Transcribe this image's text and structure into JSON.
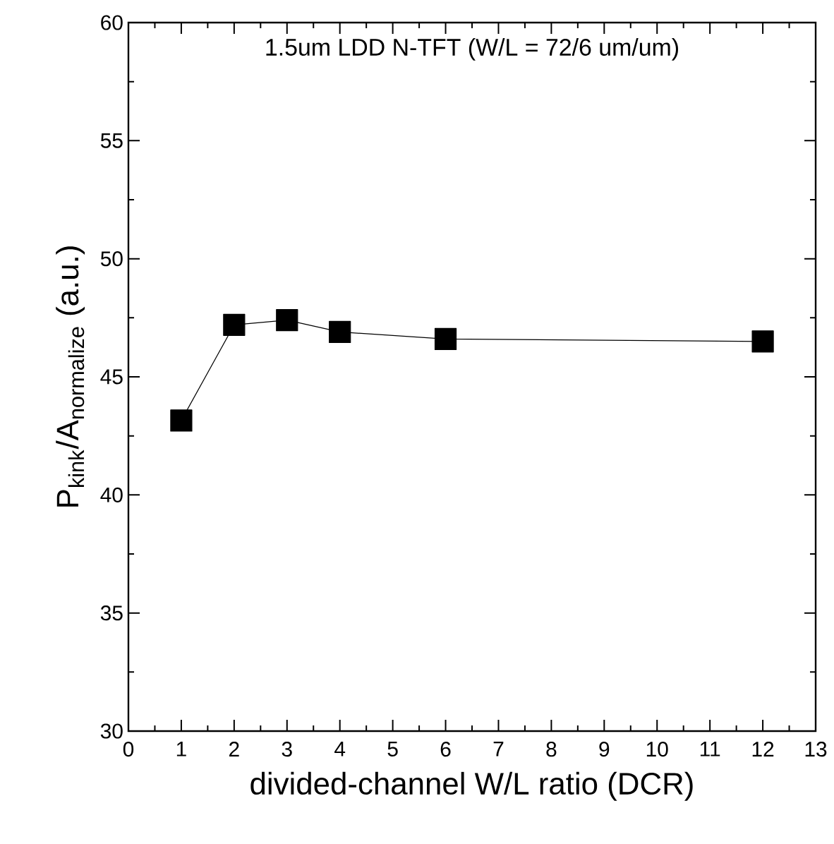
{
  "chart_data": {
    "type": "line",
    "annotations": [
      "1.5um LDD N-TFT (W/L = 72/6 um/um)"
    ],
    "xlabel": "divided-channel W/L ratio (DCR)",
    "ylabel": "\\text{P}_{\\text{kink}}\\text{/A}_{\\text{normalize}}\\text{ (a.u.)}",
    "x": [
      1,
      2,
      3,
      4,
      6,
      12
    ],
    "values": [
      43.15,
      47.2,
      47.4,
      46.9,
      46.6,
      46.5
    ],
    "color": "#000000",
    "marker": "square",
    "line_style": "solid",
    "xlim": [
      0,
      13
    ],
    "xticks": [
      0,
      1,
      2,
      3,
      4,
      5,
      6,
      7,
      8,
      9,
      10,
      11,
      12,
      13
    ],
    "ylim": [
      30,
      60
    ],
    "yticks": [
      30,
      35,
      40,
      45,
      50,
      55,
      60
    ]
  }
}
